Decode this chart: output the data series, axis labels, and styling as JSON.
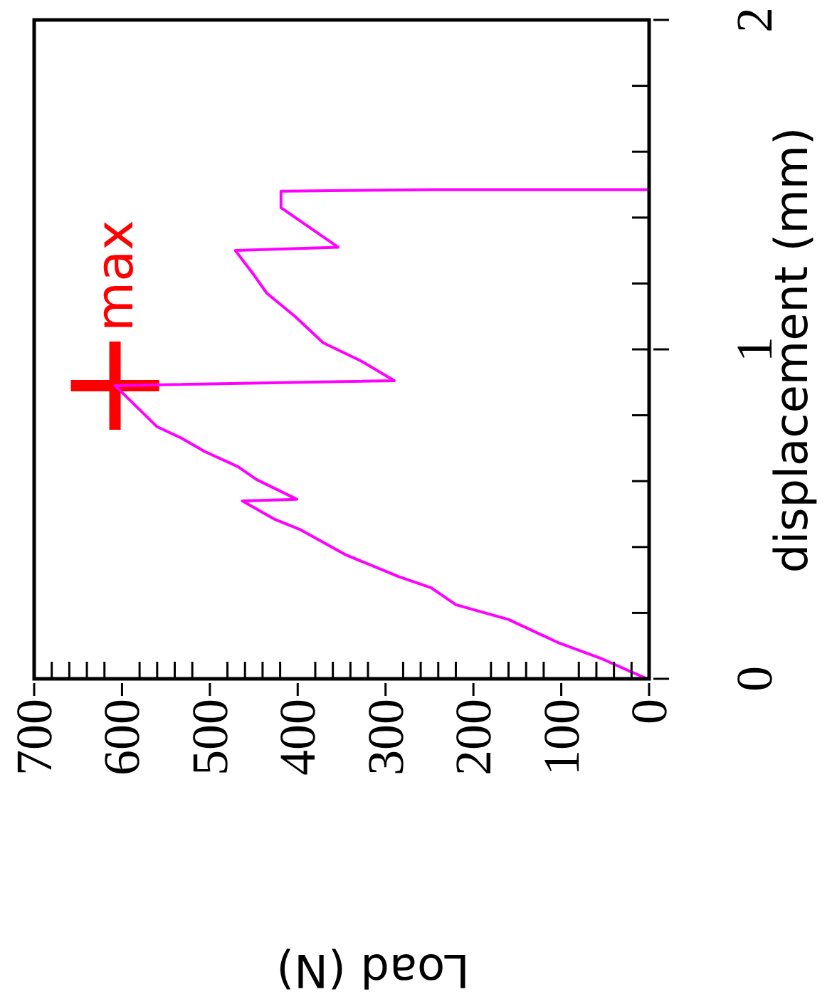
{
  "chart_data": {
    "type": "line",
    "xlabel": "Load (N)",
    "ylabel": "displacement (mm)",
    "ylim": [
      0,
      2
    ],
    "xlim": [
      700,
      0
    ],
    "yticks": [
      0,
      {
        "value": 0.2,
        "label": null
      },
      {
        "value": 0.4,
        "label": null
      },
      {
        "value": 0.6,
        "label": null
      },
      {
        "value": 0.8,
        "label": null
      },
      1,
      {
        "value": 1.2,
        "label": null
      },
      {
        "value": 1.4,
        "label": null
      },
      {
        "value": 1.6,
        "label": null
      },
      {
        "value": 1.8,
        "label": null
      },
      2
    ],
    "xticks": [
      0,
      {
        "value": 20,
        "label": null
      },
      {
        "value": 40,
        "label": null
      },
      {
        "value": 60,
        "label": null
      },
      {
        "value": 80,
        "label": null
      },
      100,
      {
        "value": 120,
        "label": null
      },
      {
        "value": 140,
        "label": null
      },
      {
        "value": 160,
        "label": null
      },
      {
        "value": 180,
        "label": null
      },
      200,
      {
        "value": 220,
        "label": null
      },
      {
        "value": 240,
        "label": null
      },
      {
        "value": 260,
        "label": null
      },
      {
        "value": 280,
        "label": null
      },
      300,
      {
        "value": 320,
        "label": null
      },
      {
        "value": 340,
        "label": null
      },
      {
        "value": 360,
        "label": null
      },
      {
        "value": 380,
        "label": null
      },
      400,
      {
        "value": 420,
        "label": null
      },
      {
        "value": 440,
        "label": null
      },
      {
        "value": 460,
        "label": null
      },
      {
        "value": 480,
        "label": null
      },
      500,
      {
        "value": 520,
        "label": null
      },
      {
        "value": 540,
        "label": null
      },
      {
        "value": 560,
        "label": null
      },
      {
        "value": 580,
        "label": null
      },
      600,
      {
        "value": 620,
        "label": null
      },
      {
        "value": 640,
        "label": null
      },
      {
        "value": 660,
        "label": null
      },
      {
        "value": 680,
        "label": null
      },
      700
    ],
    "series": [
      {
        "color": "#ff00ff",
        "values": [
          0,
          0.022,
          0.06,
          0.108,
          0.18,
          0.225,
          0.276,
          0.31,
          0.376,
          0.454,
          0.484,
          0.54,
          0.545,
          0.605,
          0.644,
          0.69,
          0.73,
          0.765,
          0.89,
          0.905,
          0.965,
          1.02,
          1.1,
          1.17,
          1.23,
          1.3,
          1.31,
          1.43,
          1.48,
          1.485,
          1.485
        ],
        "x": [
          2,
          21,
          53,
          102,
          160,
          220,
          248,
          285,
          345,
          398,
          426,
          463,
          401,
          447,
          468,
          506,
          532,
          560,
          608,
          290,
          328,
          371,
          403,
          435,
          451,
          471,
          354,
          419,
          419,
          241,
          2
        ]
      },
      {
        "type": "scatter",
        "color": "#ff0000",
        "marker": "cross",
        "x": [
          608
        ],
        "values": [
          0.89
        ]
      }
    ],
    "annotations": [
      "max"
    ]
  }
}
